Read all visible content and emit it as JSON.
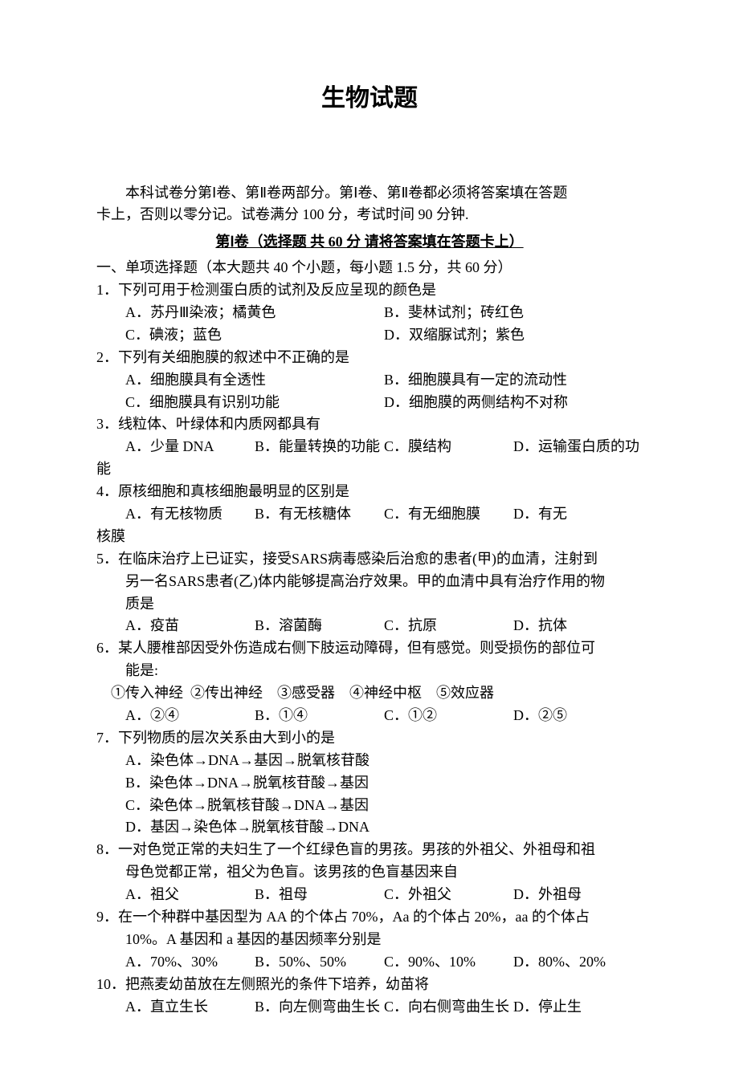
{
  "title": "生物试题",
  "intro_line1": "本科试卷分第Ⅰ卷、第Ⅱ卷两部分。第Ⅰ卷、第Ⅱ卷都必须将答案填在答题",
  "intro_line2": "卡上，否则以零分记。试卷满分 100 分，考试时间 90 分钟.",
  "part1_head": "第Ⅰ卷（选择题  共 60 分  请将答案填在答题卡上）",
  "section1_head": "一、单项选择题（本大题共 40 个小题，每小题 1.5 分，共 60 分）",
  "q1": {
    "stem": "1．下列可用于检测蛋白质的试剂及反应呈现的颜色是",
    "a": "A．苏丹Ⅲ染液；橘黄色",
    "b": "B．斐林试剂；砖红色",
    "c": "C．碘液；蓝色",
    "d": "D．双缩脲试剂；紫色"
  },
  "q2": {
    "stem": "2．下列有关细胞膜的叙述中不正确的是",
    "a": "A．细胞膜具有全透性",
    "b": "B．细胞膜具有一定的流动性",
    "c": "C．细胞膜具有识别功能",
    "d": "D．细胞膜的两侧结构不对称"
  },
  "q3": {
    "stem": "3．线粒体、叶绿体和内质网都具有",
    "a": "A．少量 DNA",
    "b": "B．能量转换的功能",
    "c": "C．膜结构",
    "d": "D．运输蛋白质的功",
    "tail": "能"
  },
  "q4": {
    "stem": "4．原核细胞和真核细胞最明显的区别是",
    "a": "A．有无核物质",
    "b": "B．有无核糖体",
    "c": "C．有无细胞膜",
    "d": "D．有无",
    "tail": "核膜"
  },
  "q5": {
    "l1": "5．在临床治疗上已证实，接受SARS病毒感染后治愈的患者(甲)的血清，注射到",
    "l2": "另一名SARS患者(乙)体内能够提高治疗效果。甲的血清中具有治疗作用的物",
    "l3": "质是",
    "a": "A．疫苗",
    "b": "B．溶菌酶",
    "c": "C．抗原",
    "d": "D．抗体"
  },
  "q6": {
    "l1": "6．某人腰椎部因受外伤造成右侧下肢运动障碍，但有感觉。则受损伤的部位可",
    "l2": "能是:",
    "nums": "①传入神经  ②传出神经    ③感受器    ④神经中枢    ⑤效应器",
    "a": "A．②④",
    "b": "B．①④",
    "c": "C．①②",
    "d": "D．②⑤"
  },
  "q7": {
    "stem": "7．下列物质的层次关系由大到小的是",
    "a": "A．染色体→DNA→基因→脱氧核苷酸",
    "b": "B．染色体→DNA→脱氧核苷酸→基因",
    "c": "C．染色体→脱氧核苷酸→DNA→基因",
    "d": "D．基因→染色体→脱氧核苷酸→DNA"
  },
  "q8": {
    "l1": "8．一对色觉正常的夫妇生了一个红绿色盲的男孩。男孩的外祖父、外祖母和祖",
    "l2": "母色觉都正常，祖父为色盲。该男孩的色盲基因来自",
    "a": "A．祖父",
    "b": "B．祖母",
    "c": "C．外祖父",
    "d": "D．外祖母"
  },
  "q9": {
    "l1": "9．在一个种群中基因型为 AA 的个体占 70%，Aa 的个体占 20%，aa 的个体占",
    "l2": "10%。A 基因和 a 基因的基因频率分别是",
    "a": "A．70%、30%",
    "b": "B．50%、50%",
    "c": "C．90%、10%",
    "d": "D．80%、20%"
  },
  "q10": {
    "stem": "10．把燕麦幼苗放在左侧照光的条件下培养，幼苗将",
    "a": "A．直立生长",
    "b": "B．向左侧弯曲生长",
    "c": "C．向右侧弯曲生长",
    "d": "D．停止生"
  }
}
